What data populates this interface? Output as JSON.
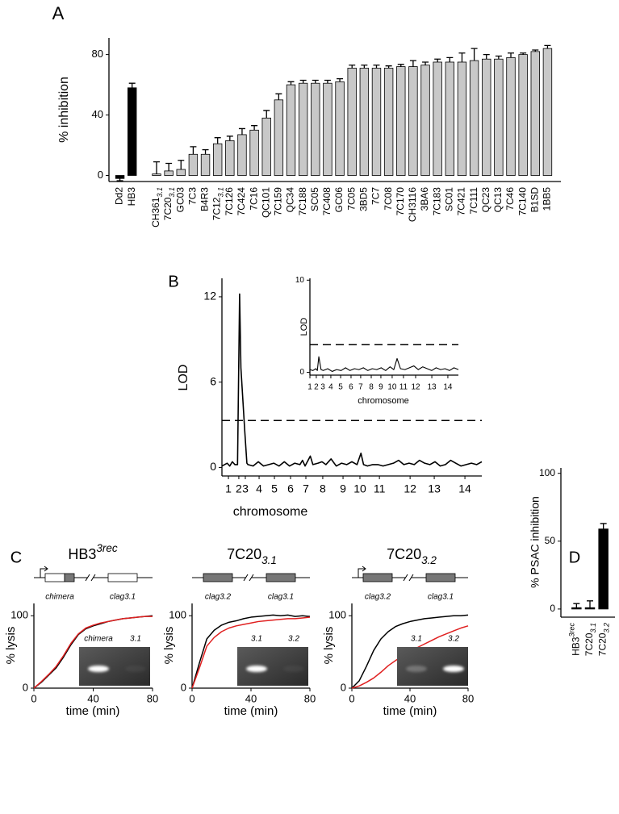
{
  "chart_data": [
    {
      "panel": "A",
      "type": "bar",
      "ylabel": "% inhibition",
      "categories": [
        "Dd2",
        "HB3",
        null,
        {
          "base": "CH361",
          "sub": "3.1"
        },
        {
          "base": "7C20",
          "sub": "3.1"
        },
        "GC03",
        "7C3",
        "B4R3",
        {
          "base": "7C12",
          "sub": "3.1"
        },
        "7C126",
        "7C424",
        "7C16",
        "QC101",
        "7C159",
        "QC34",
        "7C188",
        "SC05",
        "7C408",
        "GC06",
        "7C05",
        "3BD5",
        "7C7",
        "7C08",
        "7C170",
        "CH3116",
        "3BA6",
        "7C183",
        "SC01",
        "7C421",
        "7C111",
        "QC23",
        "QC13",
        "7C46",
        "7C140",
        "B1SD",
        "1BB5"
      ],
      "values": [
        -2,
        58,
        null,
        1,
        3,
        4,
        14,
        14,
        21,
        23,
        27,
        30,
        38,
        50,
        60,
        61,
        61,
        61,
        62,
        71,
        71,
        71,
        71,
        72,
        72,
        73,
        75,
        75,
        75,
        76,
        77,
        77,
        78,
        80,
        82,
        84
      ],
      "errors": [
        1.5,
        3,
        null,
        8,
        5,
        6,
        5,
        3,
        4,
        3,
        4,
        3,
        5,
        4,
        2,
        2,
        2,
        2,
        2,
        2,
        2,
        2,
        1.5,
        1.5,
        4,
        2,
        2,
        3,
        6,
        8,
        3,
        2,
        3,
        1,
        1,
        2
      ],
      "colors": [
        "#000000",
        "#000000",
        null,
        "#c8c8c8",
        "#c8c8c8",
        "#c8c8c8",
        "#c8c8c8",
        "#c8c8c8",
        "#c8c8c8",
        "#c8c8c8",
        "#c8c8c8",
        "#c8c8c8",
        "#c8c8c8",
        "#c8c8c8",
        "#c8c8c8",
        "#c8c8c8",
        "#c8c8c8",
        "#c8c8c8",
        "#c8c8c8",
        "#c8c8c8",
        "#c8c8c8",
        "#c8c8c8",
        "#c8c8c8",
        "#c8c8c8",
        "#c8c8c8",
        "#c8c8c8",
        "#c8c8c8",
        "#c8c8c8",
        "#c8c8c8",
        "#c8c8c8",
        "#c8c8c8",
        "#c8c8c8",
        "#c8c8c8",
        "#c8c8c8",
        "#c8c8c8",
        "#c8c8c8"
      ],
      "ylim": [
        -4,
        91
      ],
      "yticks": [
        0,
        40,
        80
      ]
    },
    {
      "panel": "B",
      "type": "line",
      "ylabel": "LOD",
      "xlabel": "chromosome",
      "x": [
        0,
        2,
        3,
        4,
        5,
        6,
        6.8,
        7.3,
        7.8,
        8.3,
        8.8,
        9.6,
        10,
        12,
        14,
        16,
        18,
        20,
        22,
        24,
        26,
        28,
        30,
        31,
        32,
        34,
        35,
        37,
        38.5,
        40,
        42,
        44,
        46,
        48,
        50,
        52,
        53.5,
        54.5,
        56,
        58,
        60,
        62,
        64,
        66,
        68,
        70,
        72,
        74,
        76,
        78,
        80,
        82,
        84,
        86,
        88,
        90,
        92,
        94,
        96,
        98,
        100
      ],
      "series": [
        {
          "color": "#000000",
          "values": [
            0.1,
            0.3,
            0.1,
            0.4,
            0.2,
            0.2,
            12.2,
            7,
            5.5,
            4,
            2.5,
            0.3,
            0.2,
            0.1,
            0.4,
            0.1,
            0.2,
            0.3,
            0.1,
            0.4,
            0.1,
            0.3,
            0.2,
            0.5,
            0.1,
            0.8,
            0.2,
            0.3,
            0.4,
            0.2,
            0.6,
            0.1,
            0.3,
            0.2,
            0.4,
            0.2,
            1.0,
            0.2,
            0.1,
            0.2,
            0.2,
            0.1,
            0.2,
            0.3,
            0.5,
            0.2,
            0.3,
            0.2,
            0.5,
            0.3,
            0.2,
            0.4,
            0.1,
            0.2,
            0.5,
            0.3,
            0.1,
            0.2,
            0.3,
            0.2,
            0.4
          ]
        }
      ],
      "threshold": 3.3,
      "xlim": [
        0,
        100
      ],
      "ylim": [
        -0.6,
        13.3
      ],
      "yticks": [
        0,
        6,
        12
      ],
      "xticks": [
        {
          "value": 2.5,
          "label": "1"
        },
        {
          "value": 6.5,
          "label": "2"
        },
        {
          "value": 9,
          "label": "3"
        },
        {
          "value": 14.3,
          "label": "4"
        },
        {
          "value": 20.2,
          "label": "5"
        },
        {
          "value": 26.4,
          "label": "6"
        },
        {
          "value": 32.3,
          "label": "7"
        },
        {
          "value": 38.8,
          "label": "8"
        },
        {
          "value": 46.6,
          "label": "9"
        },
        {
          "value": 53.1,
          "label": "10"
        },
        {
          "value": 60.6,
          "label": "11"
        },
        {
          "value": 72.4,
          "label": "12"
        },
        {
          "value": 81.7,
          "label": "13"
        },
        {
          "value": 93.5,
          "label": "14"
        }
      ]
    },
    {
      "type": "line",
      "ylabel": "LOD",
      "xlabel": "chromosome",
      "x": [
        0,
        2,
        4,
        5,
        6,
        7.5,
        9,
        12,
        15,
        18,
        21,
        24,
        27,
        30,
        33,
        36,
        39,
        42,
        45,
        48,
        51,
        54,
        56.5,
        58.7,
        61,
        64,
        67,
        70,
        73,
        76,
        79,
        82,
        85,
        88,
        91,
        94,
        97,
        100
      ],
      "series": [
        {
          "color": "#000000",
          "values": [
            0.3,
            0.2,
            0.4,
            0.2,
            1.7,
            0.3,
            0.2,
            0.4,
            0.1,
            0.3,
            0.2,
            0.5,
            0.2,
            0.4,
            0.3,
            0.5,
            0.2,
            0.4,
            0.3,
            0.5,
            0.2,
            0.6,
            0.3,
            1.5,
            0.4,
            0.3,
            0.5,
            0.7,
            0.3,
            0.6,
            0.4,
            0.2,
            0.5,
            0.3,
            0.4,
            0.2,
            0.5,
            0.3
          ]
        }
      ],
      "threshold": 3.0,
      "xlim": [
        0,
        100
      ],
      "ylim": [
        -0.3,
        10.2
      ],
      "yticks": [
        0,
        10
      ],
      "xticks": [
        {
          "value": 0,
          "label": "1"
        },
        {
          "value": 4.3,
          "label": "2"
        },
        {
          "value": 8.7,
          "label": "3"
        },
        {
          "value": 14.1,
          "label": "4"
        },
        {
          "value": 20.7,
          "label": "5"
        },
        {
          "value": 27.7,
          "label": "6"
        },
        {
          "value": 34.2,
          "label": "7"
        },
        {
          "value": 41.3,
          "label": "8"
        },
        {
          "value": 47.8,
          "label": "9"
        },
        {
          "value": 55.4,
          "label": "10"
        },
        {
          "value": 63,
          "label": "11"
        },
        {
          "value": 71.2,
          "label": "12"
        },
        {
          "value": 82.1,
          "label": "13"
        },
        {
          "value": 92.9,
          "label": "14"
        }
      ]
    },
    {
      "panel": "C",
      "type": "line",
      "title": {
        "base": "HB3",
        "sup": "3rec"
      },
      "ylabel": "% lysis",
      "xlabel": "time (min)",
      "gene_labels": [
        "chimera",
        "clag3.1"
      ],
      "gel_labels": [
        "chimera",
        "3.1"
      ],
      "x": [
        0,
        5,
        10,
        15,
        20,
        25,
        30,
        35,
        40,
        45,
        50,
        55,
        60,
        65,
        70,
        75,
        80
      ],
      "series": [
        {
          "color": "#000000",
          "values": [
            0,
            8,
            18,
            28,
            43,
            60,
            74,
            82,
            86,
            89,
            92,
            94,
            96,
            97,
            98,
            99,
            100
          ]
        },
        {
          "color": "#e02020",
          "values": [
            0,
            9,
            19,
            30,
            45,
            62,
            75,
            83,
            87,
            90,
            92,
            94,
            96,
            97,
            98,
            99,
            99
          ]
        }
      ],
      "xlim": [
        0,
        80
      ],
      "ylim": [
        0,
        117
      ],
      "xticks": [
        0,
        40,
        80
      ],
      "yticks": [
        0,
        100
      ]
    },
    {
      "type": "line",
      "title": {
        "base": "7C20",
        "sub": "3.1"
      },
      "ylabel": "% lysis",
      "xlabel": "time (min)",
      "gene_labels": [
        "clag3.2",
        "clag3.1"
      ],
      "gel_labels": [
        "3.1",
        "3.2"
      ],
      "x": [
        0,
        5,
        10,
        15,
        20,
        25,
        30,
        35,
        40,
        45,
        50,
        55,
        60,
        65,
        70,
        75,
        80
      ],
      "series": [
        {
          "color": "#000000",
          "values": [
            0,
            35,
            68,
            80,
            87,
            91,
            93,
            96,
            98,
            99,
            100,
            101,
            100,
            101,
            99,
            100,
            99
          ]
        },
        {
          "color": "#e02020",
          "values": [
            0,
            28,
            58,
            70,
            78,
            83,
            86,
            88,
            90,
            92,
            93,
            94,
            95,
            96,
            96,
            97,
            98
          ]
        }
      ],
      "xlim": [
        0,
        80
      ],
      "ylim": [
        0,
        117
      ],
      "xticks": [
        0,
        40,
        80
      ],
      "yticks": [
        0,
        100
      ]
    },
    {
      "type": "line",
      "title": {
        "base": "7C20",
        "sub": "3.2"
      },
      "ylabel": "% lysis",
      "xlabel": "time (min)",
      "gene_labels": [
        "clag3.2",
        "clag3.1"
      ],
      "gel_labels": [
        "3.1",
        "3.2"
      ],
      "x": [
        0,
        5,
        10,
        15,
        20,
        25,
        30,
        35,
        40,
        45,
        50,
        55,
        60,
        65,
        70,
        75,
        80
      ],
      "series": [
        {
          "color": "#000000",
          "values": [
            0,
            10,
            30,
            52,
            68,
            78,
            85,
            89,
            92,
            94,
            96,
            97,
            98,
            99,
            100,
            100,
            101
          ]
        },
        {
          "color": "#e02020",
          "values": [
            0,
            3,
            8,
            14,
            22,
            31,
            38,
            45,
            51,
            56,
            61,
            66,
            71,
            75,
            79,
            83,
            86
          ]
        }
      ],
      "xlim": [
        0,
        80
      ],
      "ylim": [
        0,
        117
      ],
      "xticks": [
        0,
        40,
        80
      ],
      "yticks": [
        0,
        100
      ]
    },
    {
      "panel": "D",
      "type": "bar",
      "ylabel": "% PSAC inhibition",
      "categories": [
        {
          "base": "HB3",
          "sup": "3rec"
        },
        {
          "base": "7C20",
          "sub": "3.1"
        },
        {
          "base": "7C20",
          "sub": "3.2"
        }
      ],
      "values": [
        1,
        1,
        59
      ],
      "errors": [
        3,
        5,
        4
      ],
      "colors": [
        "#000000",
        "#000000",
        "#000000"
      ],
      "ylim": [
        -6,
        104
      ],
      "yticks": [
        0,
        50,
        100
      ]
    }
  ]
}
